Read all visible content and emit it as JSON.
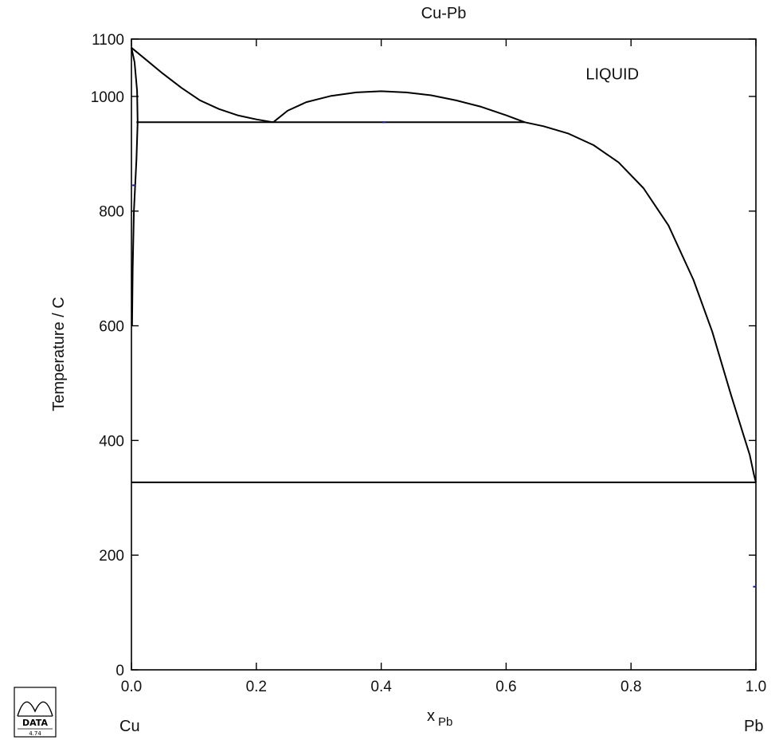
{
  "chart_data": {
    "type": "line",
    "title": "Cu-Pb",
    "xlabel_main": "x",
    "xlabel_sub": "Pb",
    "ylabel": "Temperature / C",
    "xlim": [
      0.0,
      1.0
    ],
    "ylim": [
      0,
      1100
    ],
    "x_ticks": [
      0.0,
      0.2,
      0.4,
      0.6,
      0.8,
      1.0
    ],
    "x_tick_labels": [
      "0.0",
      "0.2",
      "0.4",
      "0.6",
      "0.8",
      "1.0"
    ],
    "y_ticks": [
      0,
      200,
      400,
      600,
      800,
      1000,
      1100
    ],
    "y_tick_labels": [
      "0",
      "200",
      "400",
      "600",
      "800",
      "1000",
      "1100"
    ],
    "grid": false,
    "left_component": "Cu",
    "right_component": "Pb",
    "annotations": [
      {
        "text": "LIQUID",
        "x": 0.77,
        "y": 1030
      }
    ],
    "logo": {
      "text": "DATA",
      "version": "4.74"
    },
    "series": [
      {
        "role": "liquidus-cu",
        "x": [
          0.0,
          0.02,
          0.05,
          0.08,
          0.11,
          0.14,
          0.17,
          0.2,
          0.227
        ],
        "y": [
          1085,
          1067,
          1040,
          1015,
          993,
          978,
          967,
          960,
          955
        ]
      },
      {
        "role": "miscibility-gap",
        "x": [
          0.227,
          0.25,
          0.28,
          0.32,
          0.36,
          0.4,
          0.44,
          0.48,
          0.52,
          0.56,
          0.6,
          0.63
        ],
        "y": [
          955,
          975,
          990,
          1001,
          1007,
          1009,
          1007,
          1002,
          993,
          982,
          967,
          955
        ]
      },
      {
        "role": "liquidus-pb",
        "x": [
          0.63,
          0.66,
          0.7,
          0.74,
          0.78,
          0.82,
          0.86,
          0.9,
          0.93,
          0.96,
          0.98,
          0.99,
          0.997,
          1.0
        ],
        "y": [
          955,
          948,
          935,
          915,
          885,
          840,
          775,
          680,
          590,
          480,
          410,
          375,
          340,
          327
        ]
      },
      {
        "role": "solidus-cu",
        "x": [
          0.0,
          0.005,
          0.009,
          0.01,
          0.008,
          0.004,
          0.002,
          0.001
        ],
        "y": [
          1085,
          1060,
          1010,
          955,
          890,
          800,
          700,
          600
        ]
      },
      {
        "role": "monotectic-line",
        "x": [
          0.008,
          0.63
        ],
        "y": [
          955,
          955
        ]
      },
      {
        "role": "eutectic-line",
        "x": [
          0.0,
          1.0
        ],
        "y": [
          327,
          327
        ]
      }
    ],
    "markers": [
      {
        "x": 0.004,
        "y": 845
      },
      {
        "x": 0.405,
        "y": 955
      },
      {
        "x": 0.998,
        "y": 145
      }
    ]
  }
}
